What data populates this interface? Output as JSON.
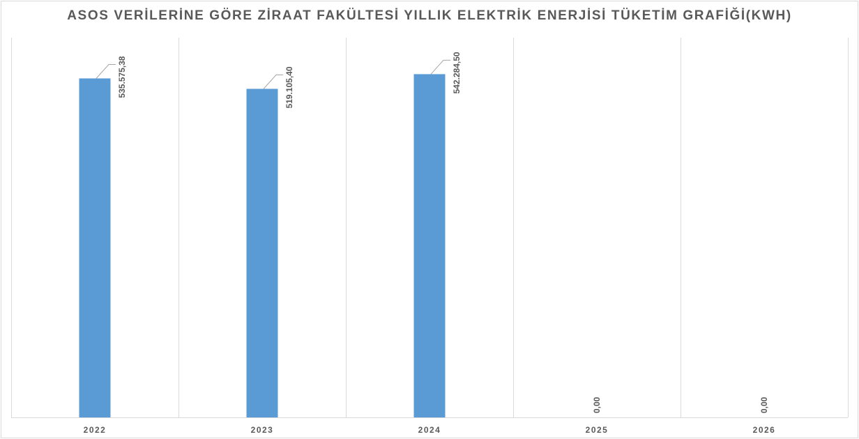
{
  "chart_data": {
    "type": "bar",
    "title": "ASOS VERİLERİNE GÖRE ZİRAAT FAKÜLTESİ YILLIK ELEKTRİK ENERJİSİ TÜKETİM GRAFİĞİ(KWH)",
    "categories": [
      "2022",
      "2023",
      "2024",
      "2025",
      "2026"
    ],
    "values": [
      535575.38,
      519105.4,
      542284.5,
      0,
      0
    ],
    "data_labels": [
      "535.575,38",
      "519.105,40",
      "542.284,50",
      "0,00",
      "0,00"
    ],
    "xlabel": "",
    "ylabel": "",
    "ylim": [
      0,
      600000
    ],
    "grid": "vertical",
    "legend": "none",
    "bar_color": "#5b9bd5",
    "grid_color": "#d9d9d9",
    "text_color": "#595959"
  }
}
